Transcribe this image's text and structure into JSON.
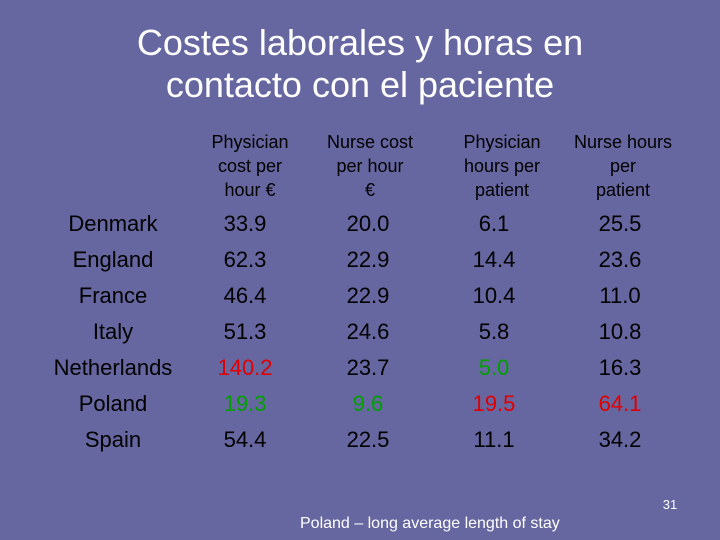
{
  "title_lines": [
    "Costes laborales y horas en",
    "contacto con el paciente"
  ],
  "columns": [
    "Physician\ncost per\nhour €",
    "Nurse cost\nper hour\n€",
    "Physician\nhours per\npatient",
    "Nurse hours\nper\npatient"
  ],
  "rows": [
    {
      "country": "Denmark",
      "values": [
        "33.9",
        "20.0",
        "6.1",
        "25.5"
      ]
    },
    {
      "country": "England",
      "values": [
        "62.3",
        "22.9",
        "14.4",
        "23.6"
      ]
    },
    {
      "country": "France",
      "values": [
        "46.4",
        "22.9",
        "10.4",
        "11.0"
      ]
    },
    {
      "country": "Italy",
      "values": [
        "51.3",
        "24.6",
        "5.8",
        "10.8"
      ]
    },
    {
      "country": "Netherlands",
      "values": [
        "140.2",
        "23.7",
        "5.0",
        "16.3"
      ]
    },
    {
      "country": "Poland",
      "values": [
        "19.3",
        "9.6",
        "19.5",
        "64.1"
      ]
    },
    {
      "country": "Spain",
      "values": [
        "54.4",
        "22.5",
        "11.1",
        "34.2"
      ]
    }
  ],
  "colors": {
    "background": "#6666a0",
    "title": "#ffffff",
    "text": "#000000",
    "red_highlight": "#e00000",
    "green_highlight": "#00a000"
  },
  "cell_colors": {
    "4": [
      "red_highlight",
      null,
      "green_highlight",
      null
    ],
    "5": [
      "green_highlight",
      "green_highlight",
      "red_highlight",
      "red_highlight"
    ]
  },
  "slide_number": "31",
  "footnote": "Poland – long average length of stay"
}
